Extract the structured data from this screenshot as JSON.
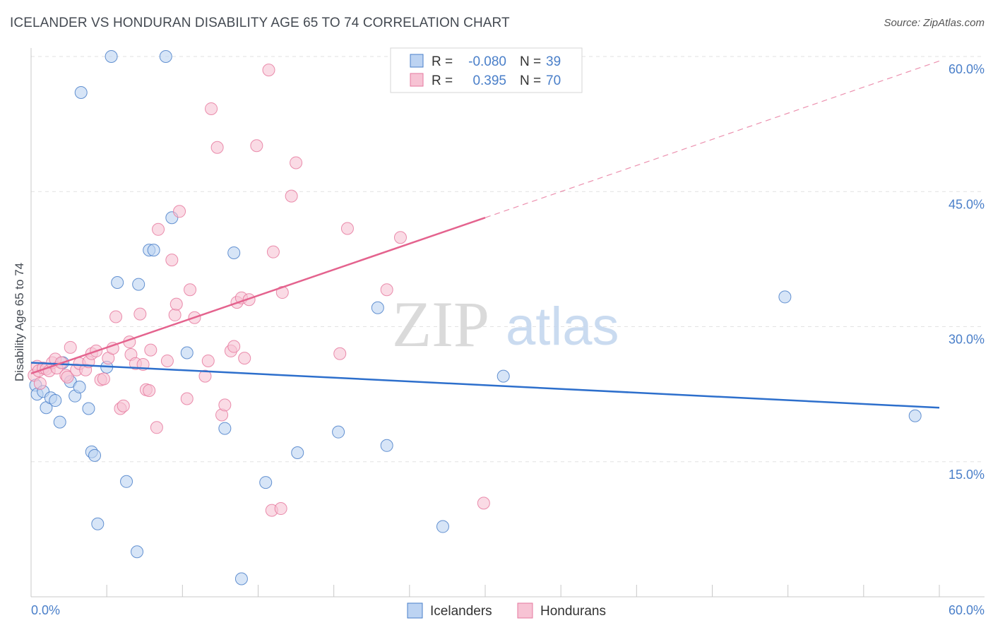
{
  "header": {
    "title": "ICELANDER VS HONDURAN DISABILITY AGE 65 TO 74 CORRELATION CHART",
    "source": "Source: ZipAtlas.com"
  },
  "watermark": {
    "zip": "ZIP",
    "atlas": "atlas"
  },
  "colors": {
    "blue": "#4a7fc9",
    "blue_fill": "#bcd3f2",
    "blue_line": "#2d6fcc",
    "pink": "#e67a9f",
    "pink_fill": "#f7c3d4",
    "pink_line": "#e4638e",
    "grid": "#e2e2e2"
  },
  "legend": {
    "r_label": "R =",
    "n_label": "N =",
    "rows": [
      {
        "r": "-0.080",
        "n": "39",
        "series": "icelanders"
      },
      {
        "r": "0.395",
        "n": "70",
        "series": "hondurans"
      }
    ]
  },
  "bottom_legend": {
    "items": [
      "Icelanders",
      "Hondurans"
    ]
  },
  "chart_data": {
    "type": "scatter",
    "title": "ICELANDER VS HONDURAN DISABILITY AGE 65 TO 74 CORRELATION CHART",
    "xlabel": "",
    "ylabel": "Disability Age 65 to 74",
    "xlim": [
      0,
      60
    ],
    "ylim": [
      0,
      60
    ],
    "x_tick_labels": [
      {
        "value": 0,
        "label": "0.0%"
      },
      {
        "value": 60,
        "label": "60.0%"
      }
    ],
    "y_tick_labels": [
      {
        "value": 15,
        "label": "15.0%"
      },
      {
        "value": 30,
        "label": "30.0%"
      },
      {
        "value": 45,
        "label": "45.0%"
      },
      {
        "value": 60,
        "label": "60.0%"
      }
    ],
    "series": [
      {
        "name": "Icelanders",
        "r": -0.08,
        "n": 39,
        "trend": {
          "x": [
            0,
            60
          ],
          "y": [
            26.0,
            21.0
          ],
          "dashed_from": null
        },
        "points": [
          [
            0.3,
            23.5
          ],
          [
            0.4,
            22.5
          ],
          [
            0.8,
            22.8
          ],
          [
            1.0,
            21.0
          ],
          [
            1.3,
            22.1
          ],
          [
            1.6,
            21.8
          ],
          [
            1.9,
            19.4
          ],
          [
            2.1,
            26.0
          ],
          [
            2.6,
            23.9
          ],
          [
            2.9,
            22.3
          ],
          [
            3.2,
            23.3
          ],
          [
            3.8,
            20.9
          ],
          [
            4.0,
            16.1
          ],
          [
            4.2,
            15.7
          ],
          [
            4.4,
            8.1
          ],
          [
            5.0,
            25.5
          ],
          [
            3.3,
            56.0
          ],
          [
            5.3,
            60.0
          ],
          [
            5.7,
            34.9
          ],
          [
            6.3,
            12.8
          ],
          [
            7.0,
            5.0
          ],
          [
            7.1,
            34.7
          ],
          [
            7.8,
            38.5
          ],
          [
            8.1,
            38.5
          ],
          [
            8.9,
            60.0
          ],
          [
            9.3,
            42.1
          ],
          [
            10.3,
            27.1
          ],
          [
            12.8,
            18.7
          ],
          [
            13.4,
            38.2
          ],
          [
            13.9,
            2.0
          ],
          [
            15.5,
            12.7
          ],
          [
            17.6,
            16.0
          ],
          [
            20.3,
            18.3
          ],
          [
            22.9,
            32.1
          ],
          [
            23.5,
            16.8
          ],
          [
            27.2,
            7.8
          ],
          [
            31.2,
            24.5
          ],
          [
            49.8,
            33.3
          ],
          [
            58.4,
            20.1
          ]
        ]
      },
      {
        "name": "Hondurans",
        "r": 0.395,
        "n": 70,
        "trend": {
          "x": [
            0,
            30,
            60
          ],
          "y": [
            24.8,
            42.1,
            59.5
          ],
          "dashed_from": 30
        },
        "points": [
          [
            0.2,
            24.6
          ],
          [
            0.4,
            25.6
          ],
          [
            0.5,
            25.1
          ],
          [
            0.6,
            23.7
          ],
          [
            0.8,
            25.4
          ],
          [
            1.0,
            25.3
          ],
          [
            1.2,
            25.1
          ],
          [
            1.4,
            26.0
          ],
          [
            1.6,
            26.4
          ],
          [
            1.7,
            25.4
          ],
          [
            2.0,
            26.0
          ],
          [
            2.3,
            24.6
          ],
          [
            2.4,
            24.4
          ],
          [
            2.6,
            27.7
          ],
          [
            3.0,
            25.2
          ],
          [
            3.2,
            25.9
          ],
          [
            3.6,
            25.2
          ],
          [
            3.8,
            26.1
          ],
          [
            4.0,
            27.0
          ],
          [
            4.3,
            27.3
          ],
          [
            4.6,
            24.1
          ],
          [
            4.8,
            24.2
          ],
          [
            5.1,
            26.5
          ],
          [
            5.4,
            27.6
          ],
          [
            5.6,
            31.1
          ],
          [
            5.9,
            20.9
          ],
          [
            6.1,
            21.2
          ],
          [
            6.5,
            28.3
          ],
          [
            6.6,
            26.9
          ],
          [
            6.9,
            25.9
          ],
          [
            7.2,
            31.4
          ],
          [
            7.4,
            25.8
          ],
          [
            7.6,
            23.0
          ],
          [
            7.8,
            22.9
          ],
          [
            7.9,
            27.4
          ],
          [
            8.3,
            18.8
          ],
          [
            8.4,
            40.8
          ],
          [
            9.0,
            26.2
          ],
          [
            9.3,
            37.4
          ],
          [
            9.5,
            31.3
          ],
          [
            9.6,
            32.5
          ],
          [
            9.8,
            42.8
          ],
          [
            10.3,
            22.0
          ],
          [
            10.5,
            34.1
          ],
          [
            10.8,
            31.0
          ],
          [
            11.5,
            24.5
          ],
          [
            11.7,
            26.2
          ],
          [
            11.9,
            54.2
          ],
          [
            12.3,
            49.9
          ],
          [
            12.6,
            20.2
          ],
          [
            12.8,
            21.3
          ],
          [
            13.2,
            27.3
          ],
          [
            13.4,
            27.8
          ],
          [
            13.6,
            32.7
          ],
          [
            13.9,
            33.2
          ],
          [
            14.1,
            26.5
          ],
          [
            14.4,
            33.0
          ],
          [
            14.9,
            50.1
          ],
          [
            15.7,
            58.5
          ],
          [
            15.9,
            9.6
          ],
          [
            16.0,
            38.3
          ],
          [
            16.5,
            9.8
          ],
          [
            16.6,
            33.8
          ],
          [
            17.2,
            44.5
          ],
          [
            17.5,
            48.2
          ],
          [
            20.4,
            27.0
          ],
          [
            20.9,
            40.9
          ],
          [
            23.5,
            34.1
          ],
          [
            24.4,
            39.9
          ],
          [
            29.9,
            10.4
          ]
        ]
      }
    ]
  }
}
